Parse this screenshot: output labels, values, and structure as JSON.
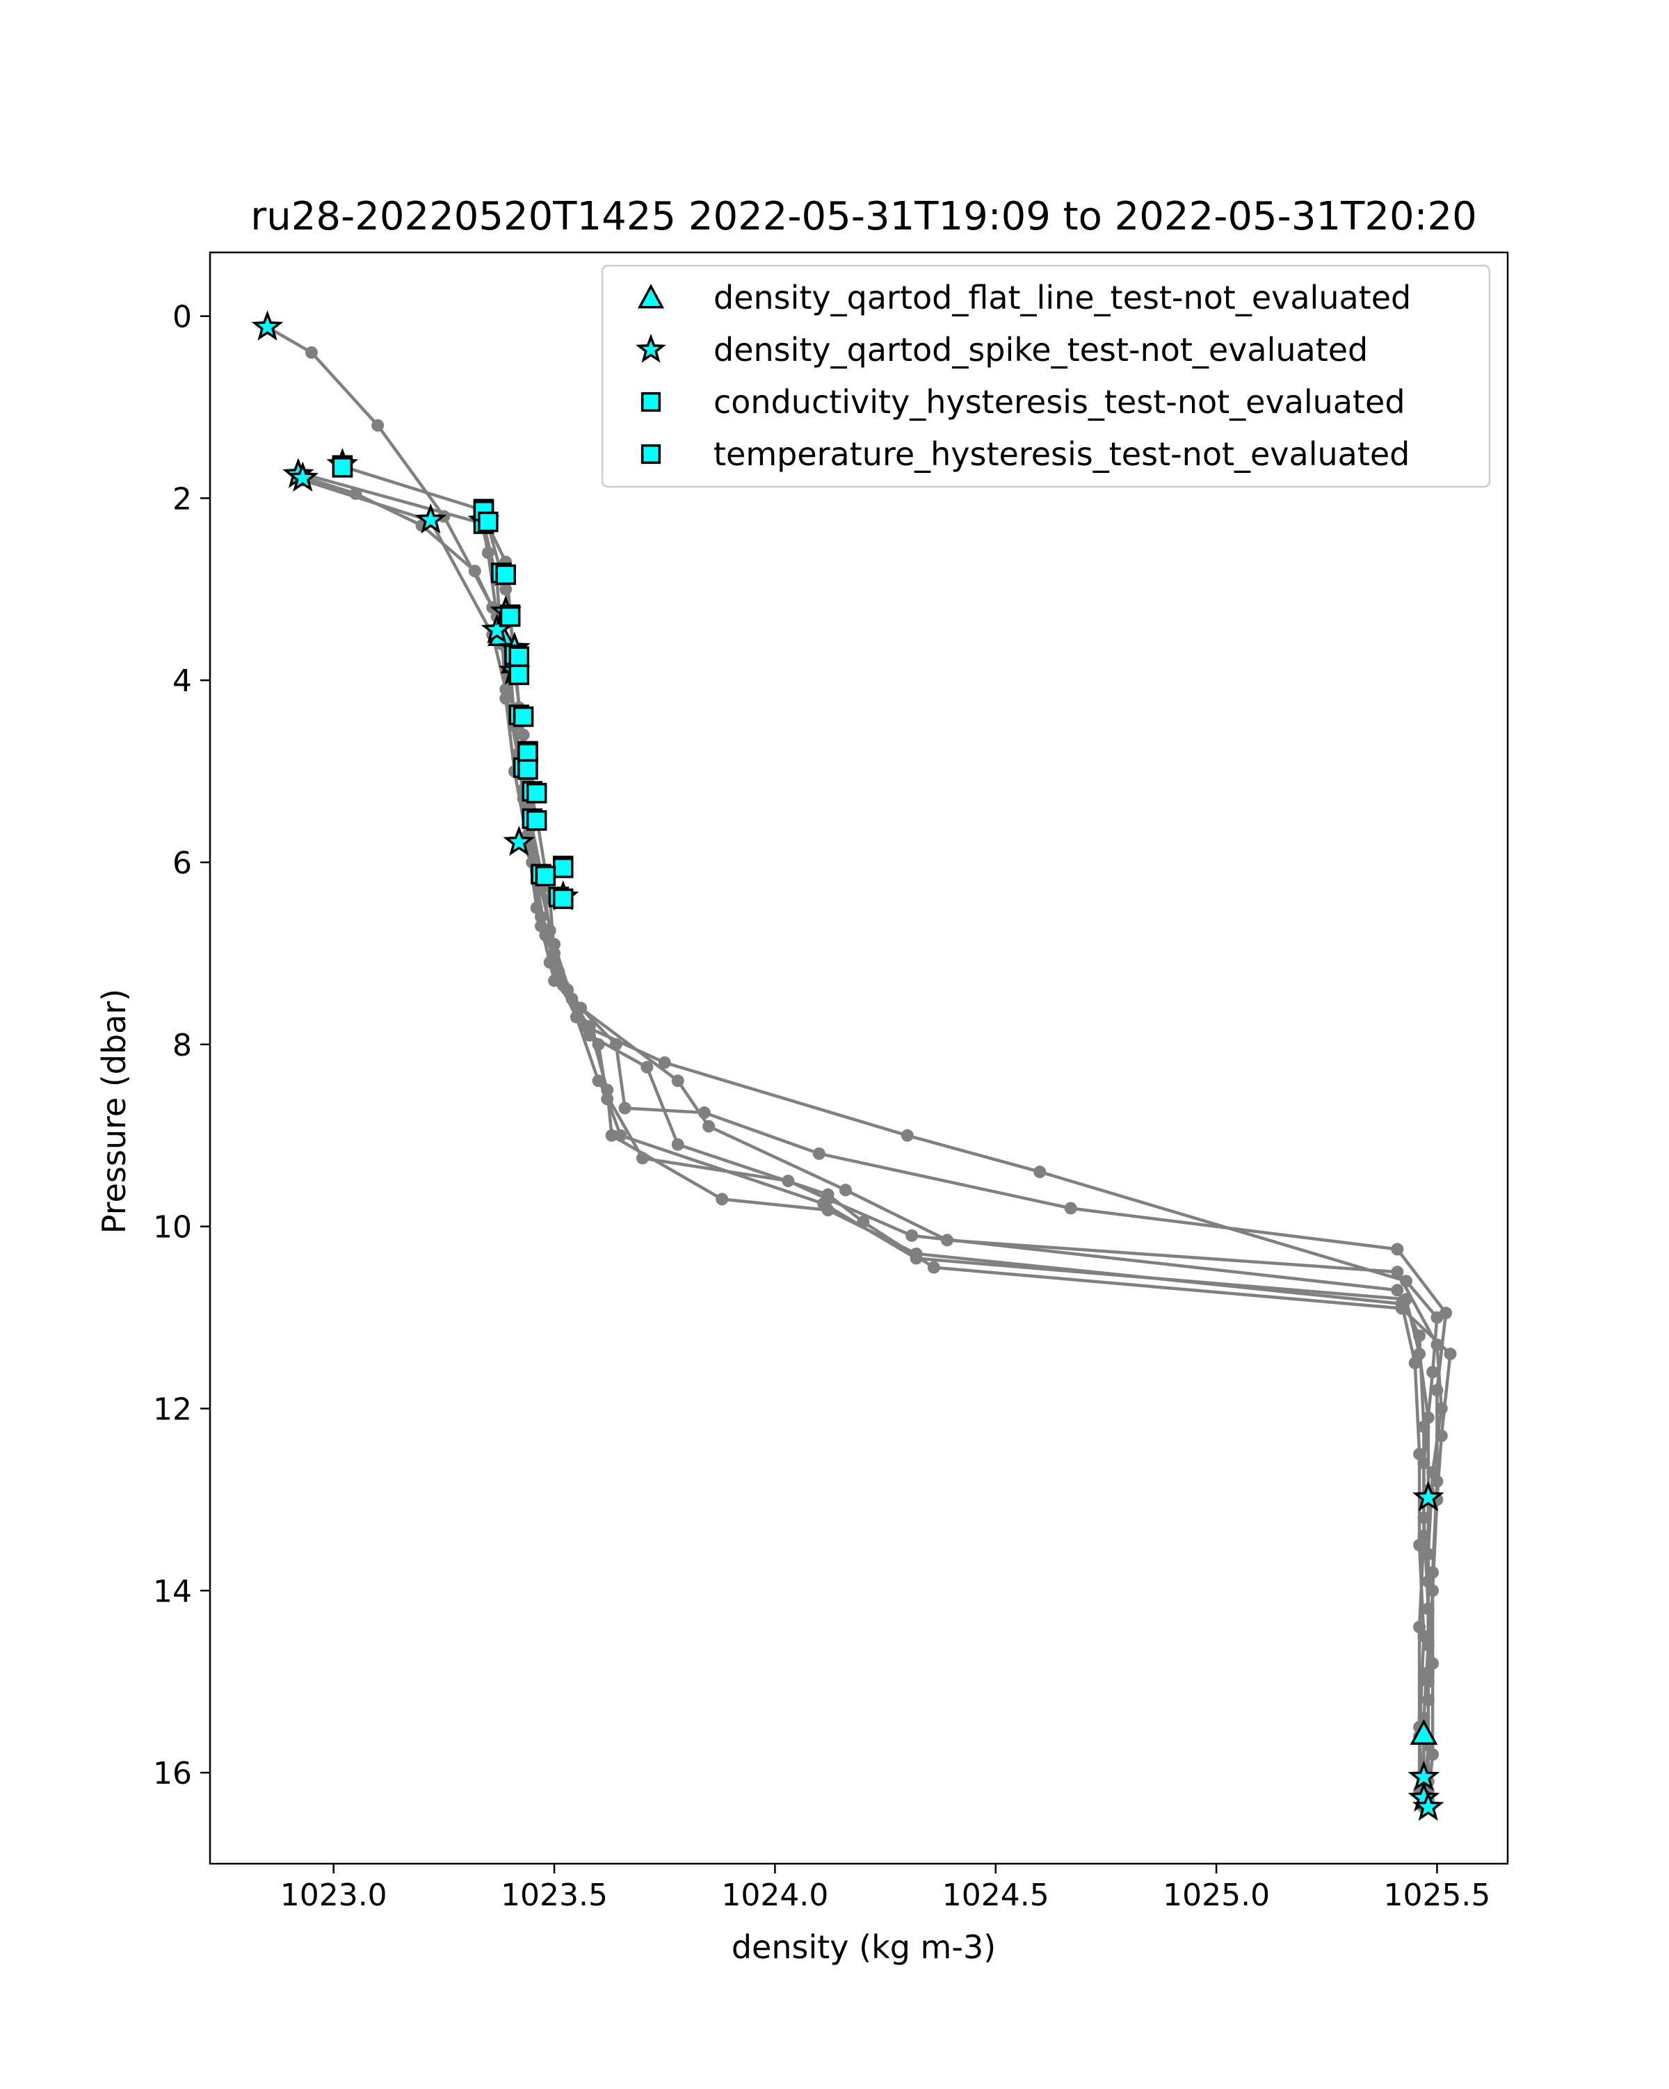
{
  "chart_data": {
    "type": "scatter",
    "title": "ru28-20220520T1425 2022-05-31T19:09 to 2022-05-31T20:20",
    "xlabel": "density (kg m-3)",
    "ylabel": "Pressure (dbar)",
    "xlim": [
      1022.72,
      1025.66
    ],
    "ylim": [
      17.0,
      -0.7
    ],
    "y_inverted": true,
    "grid": false,
    "legend_position": "top-right",
    "xticks": [
      {
        "value": 1023.0,
        "label": "1023.0"
      },
      {
        "value": 1023.5,
        "label": "1023.5"
      },
      {
        "value": 1024.0,
        "label": "1024.0"
      },
      {
        "value": 1024.5,
        "label": "1024.5"
      },
      {
        "value": 1025.0,
        "label": "1025.0"
      },
      {
        "value": 1025.5,
        "label": "1025.5"
      }
    ],
    "yticks": [
      {
        "value": 0,
        "label": "0"
      },
      {
        "value": 2,
        "label": "2"
      },
      {
        "value": 4,
        "label": "4"
      },
      {
        "value": 6,
        "label": "6"
      },
      {
        "value": 8,
        "label": "8"
      },
      {
        "value": 10,
        "label": "10"
      },
      {
        "value": 12,
        "label": "12"
      },
      {
        "value": 14,
        "label": "14"
      },
      {
        "value": 16,
        "label": "16"
      }
    ],
    "line_color": "#808080",
    "flag_color": "#00ffff",
    "profiles": [
      {
        "points": [
          [
            1022.85,
            0.12
          ],
          [
            1022.95,
            0.4
          ],
          [
            1023.1,
            1.2
          ],
          [
            1023.25,
            2.2
          ],
          [
            1023.36,
            3.2
          ],
          [
            1023.4,
            3.8
          ],
          [
            1023.41,
            4.5
          ],
          [
            1023.43,
            5.2
          ],
          [
            1023.45,
            6.0
          ],
          [
            1023.47,
            6.7
          ],
          [
            1023.5,
            7.3
          ],
          [
            1023.58,
            7.8
          ],
          [
            1023.62,
            8.5
          ],
          [
            1023.63,
            9.0
          ],
          [
            1023.88,
            9.7
          ],
          [
            1024.12,
            9.82
          ],
          [
            1024.32,
            10.3
          ],
          [
            1025.42,
            10.85
          ],
          [
            1025.45,
            11.5
          ],
          [
            1025.46,
            12.5
          ],
          [
            1025.46,
            13.5
          ],
          [
            1025.47,
            14.5
          ],
          [
            1025.46,
            15.6
          ],
          [
            1025.47,
            16.35
          ]
        ]
      },
      {
        "points": [
          [
            1022.92,
            1.75
          ],
          [
            1023.05,
            1.95
          ],
          [
            1023.2,
            2.3
          ],
          [
            1023.32,
            2.8
          ],
          [
            1023.38,
            3.4
          ],
          [
            1023.39,
            4.2
          ],
          [
            1023.41,
            5.0
          ],
          [
            1023.44,
            5.8
          ],
          [
            1023.46,
            6.5
          ],
          [
            1023.49,
            7.1
          ],
          [
            1023.55,
            7.7
          ],
          [
            1023.6,
            8.4
          ],
          [
            1023.7,
            9.25
          ],
          [
            1024.03,
            9.5
          ],
          [
            1024.12,
            9.7
          ],
          [
            1024.31,
            10.1
          ],
          [
            1025.41,
            10.7
          ],
          [
            1025.46,
            11.2
          ],
          [
            1025.47,
            12.2
          ],
          [
            1025.47,
            13.2
          ],
          [
            1025.48,
            14.2
          ],
          [
            1025.48,
            15.2
          ],
          [
            1025.48,
            16.1
          ]
        ]
      },
      {
        "points": [
          [
            1023.02,
            1.65
          ],
          [
            1023.33,
            2.12
          ],
          [
            1023.35,
            2.6
          ],
          [
            1023.37,
            3.3
          ],
          [
            1023.4,
            4.0
          ],
          [
            1023.42,
            4.8
          ],
          [
            1023.45,
            5.6
          ],
          [
            1023.47,
            6.3
          ],
          [
            1023.5,
            6.9
          ],
          [
            1023.54,
            7.5
          ],
          [
            1023.64,
            8.0
          ],
          [
            1023.66,
            8.7
          ],
          [
            1023.84,
            8.75
          ],
          [
            1024.1,
            9.2
          ],
          [
            1024.67,
            9.8
          ],
          [
            1025.41,
            10.25
          ],
          [
            1025.52,
            10.95
          ],
          [
            1025.5,
            11.8
          ],
          [
            1025.5,
            12.8
          ],
          [
            1025.49,
            13.8
          ],
          [
            1025.49,
            14.8
          ],
          [
            1025.49,
            15.8
          ],
          [
            1025.48,
            16.3
          ]
        ]
      },
      {
        "points": [
          [
            1022.93,
            1.8
          ],
          [
            1023.22,
            2.25
          ],
          [
            1023.36,
            3.5
          ],
          [
            1023.39,
            4.1
          ],
          [
            1023.42,
            4.9
          ],
          [
            1023.44,
            5.7
          ],
          [
            1023.46,
            6.2
          ],
          [
            1023.48,
            6.8
          ],
          [
            1023.52,
            7.35
          ],
          [
            1023.58,
            7.9
          ],
          [
            1023.71,
            8.25
          ],
          [
            1023.78,
            9.1
          ],
          [
            1024.12,
            9.65
          ],
          [
            1024.2,
            9.95
          ],
          [
            1024.36,
            10.45
          ],
          [
            1025.42,
            10.9
          ],
          [
            1025.53,
            11.4
          ],
          [
            1025.51,
            12.3
          ],
          [
            1025.5,
            13.0
          ],
          [
            1025.49,
            14.0
          ],
          [
            1025.48,
            15.0
          ],
          [
            1025.48,
            16.2
          ]
        ]
      },
      {
        "points": [
          [
            1022.92,
            1.72
          ],
          [
            1023.34,
            2.28
          ],
          [
            1023.37,
            2.9
          ],
          [
            1023.38,
            3.6
          ],
          [
            1023.41,
            4.4
          ],
          [
            1023.43,
            5.3
          ],
          [
            1023.45,
            5.9
          ],
          [
            1023.47,
            6.6
          ],
          [
            1023.51,
            7.2
          ],
          [
            1023.56,
            7.6
          ],
          [
            1023.78,
            8.4
          ],
          [
            1023.85,
            8.9
          ],
          [
            1024.16,
            9.6
          ],
          [
            1024.39,
            10.15
          ],
          [
            1025.41,
            10.5
          ],
          [
            1025.5,
            11.3
          ],
          [
            1025.51,
            12.0
          ],
          [
            1025.49,
            12.7
          ],
          [
            1025.48,
            13.6
          ],
          [
            1025.48,
            14.6
          ],
          [
            1025.47,
            15.4
          ],
          [
            1025.47,
            16.0
          ]
        ]
      },
      {
        "points": [
          [
            1023.34,
            2.2
          ],
          [
            1023.39,
            2.7
          ],
          [
            1023.4,
            3.25
          ],
          [
            1023.41,
            3.9
          ],
          [
            1023.43,
            4.6
          ],
          [
            1023.44,
            5.1
          ],
          [
            1023.46,
            5.5
          ],
          [
            1023.49,
            6.4
          ],
          [
            1023.5,
            7.0
          ],
          [
            1023.57,
            7.8
          ],
          [
            1023.75,
            8.2
          ],
          [
            1024.3,
            9.0
          ],
          [
            1024.6,
            9.4
          ],
          [
            1025.43,
            10.6
          ],
          [
            1025.5,
            11.0
          ],
          [
            1025.49,
            11.6
          ],
          [
            1025.47,
            12.6
          ],
          [
            1025.47,
            13.4
          ],
          [
            1025.46,
            14.4
          ],
          [
            1025.46,
            15.5
          ],
          [
            1025.46,
            16.2
          ]
        ]
      },
      {
        "points": [
          [
            1023.35,
            2.3
          ],
          [
            1023.39,
            3.0
          ],
          [
            1023.41,
            3.7
          ],
          [
            1023.42,
            4.3
          ],
          [
            1023.44,
            5.4
          ],
          [
            1023.47,
            6.1
          ],
          [
            1023.49,
            6.75
          ],
          [
            1023.53,
            7.4
          ],
          [
            1023.6,
            8.0
          ],
          [
            1023.62,
            8.6
          ],
          [
            1023.65,
            9.0
          ],
          [
            1024.11,
            9.75
          ],
          [
            1024.32,
            10.35
          ],
          [
            1025.43,
            10.8
          ],
          [
            1025.46,
            11.4
          ],
          [
            1025.48,
            12.1
          ],
          [
            1025.48,
            12.9
          ],
          [
            1025.48,
            13.9
          ],
          [
            1025.48,
            14.9
          ],
          [
            1025.48,
            15.7
          ],
          [
            1025.47,
            16.38
          ]
        ]
      }
    ],
    "series": [
      {
        "name": "density_qartod_flat_line_test-not_evaluated",
        "marker": "triangle",
        "points": [
          [
            1023.38,
            3.5
          ],
          [
            1023.41,
            3.8
          ],
          [
            1025.47,
            15.57
          ]
        ]
      },
      {
        "name": "density_qartod_spike_test-not_evaluated",
        "marker": "star",
        "points": [
          [
            1022.85,
            0.12
          ],
          [
            1022.92,
            1.74
          ],
          [
            1022.93,
            1.78
          ],
          [
            1023.02,
            1.63
          ],
          [
            1023.22,
            2.24
          ],
          [
            1023.34,
            2.25
          ],
          [
            1023.37,
            3.45
          ],
          [
            1023.39,
            3.25
          ],
          [
            1023.41,
            3.65
          ],
          [
            1023.41,
            3.9
          ],
          [
            1023.42,
            5.78
          ],
          [
            1023.52,
            6.38
          ],
          [
            1025.48,
            12.98
          ],
          [
            1025.47,
            16.05
          ],
          [
            1025.47,
            16.28
          ],
          [
            1025.48,
            16.38
          ]
        ]
      },
      {
        "name": "conductivity_hysteresis_test-not_evaluated",
        "marker": "square",
        "points": [
          [
            1023.02,
            1.64
          ],
          [
            1023.34,
            2.12
          ],
          [
            1023.34,
            2.28
          ],
          [
            1023.38,
            2.82
          ],
          [
            1023.4,
            3.28
          ],
          [
            1023.41,
            3.72
          ],
          [
            1023.42,
            3.92
          ],
          [
            1023.42,
            4.38
          ],
          [
            1023.44,
            4.78
          ],
          [
            1023.43,
            4.96
          ],
          [
            1023.45,
            5.22
          ],
          [
            1023.45,
            5.52
          ],
          [
            1023.52,
            6.04
          ],
          [
            1023.47,
            6.13
          ],
          [
            1023.51,
            6.38
          ]
        ]
      },
      {
        "name": "temperature_hysteresis_test-not_evaluated",
        "marker": "square",
        "points": [
          [
            1023.02,
            1.66
          ],
          [
            1023.34,
            2.14
          ],
          [
            1023.35,
            2.26
          ],
          [
            1023.39,
            2.84
          ],
          [
            1023.4,
            3.3
          ],
          [
            1023.42,
            3.74
          ],
          [
            1023.42,
            3.94
          ],
          [
            1023.43,
            4.4
          ],
          [
            1023.44,
            4.8
          ],
          [
            1023.44,
            4.98
          ],
          [
            1023.46,
            5.24
          ],
          [
            1023.46,
            5.54
          ],
          [
            1023.52,
            6.06
          ],
          [
            1023.48,
            6.15
          ],
          [
            1023.52,
            6.4
          ]
        ]
      }
    ]
  }
}
